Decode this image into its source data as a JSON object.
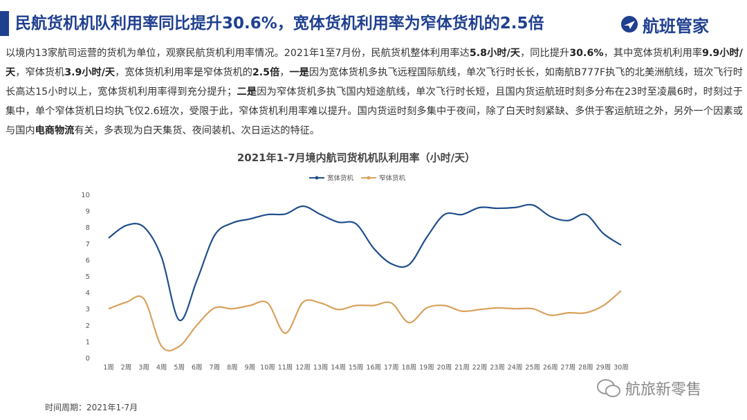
{
  "header": {
    "title": "民航货机机队利用率同比提升30.6%，宽体货机利用率为窄体货机的2.5倍",
    "logo": "航班管家"
  },
  "paragraph": [
    {
      "text": "以境内13家航司运营的货机为单位，观察民航货机利用率情况。2021年1至7月份，民航货机整体利用率达",
      "bold": false
    },
    {
      "text": "5.8小时/天",
      "bold": true
    },
    {
      "text": "，同比提升",
      "bold": false
    },
    {
      "text": "30.6%",
      "bold": true
    },
    {
      "text": "，其中宽体货机利用率",
      "bold": false
    },
    {
      "text": "9.9小时/天",
      "bold": true
    },
    {
      "text": "，窄体货机",
      "bold": false
    },
    {
      "text": "3.9小时/天",
      "bold": true
    },
    {
      "text": "，宽体货机利用率是窄体货机的",
      "bold": false
    },
    {
      "text": "2.5倍",
      "bold": true
    },
    {
      "text": "，",
      "bold": false
    },
    {
      "text": "一是",
      "bold": true
    },
    {
      "text": "因为宽体货机多执飞远程国际航线，单次飞行时长长，如南航B777F执飞的北美洲航线，班次飞行时长高达15小时以上，宽体货机利用率得到充分提升；",
      "bold": false
    },
    {
      "text": "二是",
      "bold": true
    },
    {
      "text": "因为窄体货机多执飞国内短途航线，单次飞行时长短，且国内货运航班时刻多分布在23时至凌晨6时，时刻过于集中，单个窄体货机日均执飞仅2.6班次，受限于此，窄体货机利用率难以提升。国内货运时刻多集中于夜间，除了白天时刻紧缺、多供于客运航班之外，另外一个因素或与国内",
      "bold": false
    },
    {
      "text": "电商物流",
      "bold": true
    },
    {
      "text": "有关，多表现为白天集货、夜间装机、次日运达的特征。",
      "bold": false
    }
  ],
  "chart_data": {
    "type": "line",
    "title": "2021年1-7月境内航司货机机队利用率（小时/天）",
    "categories": [
      "1周",
      "2周",
      "3周",
      "4周",
      "5周",
      "6周",
      "7周",
      "8周",
      "9周",
      "10周",
      "11周",
      "12周",
      "13周",
      "14周",
      "15周",
      "16周",
      "17周",
      "18周",
      "19周",
      "20周",
      "21周",
      "22周",
      "23周",
      "24周",
      "25周",
      "26周",
      "27周",
      "28周",
      "29周",
      "30周"
    ],
    "series": [
      {
        "name": "宽体货机",
        "color": "#1f4e8c",
        "values": [
          7.33,
          8.1,
          8.0,
          6.15,
          2.3,
          4.75,
          7.5,
          8.25,
          8.5,
          8.77,
          8.8,
          9.28,
          8.77,
          8.3,
          8.2,
          6.7,
          5.75,
          5.7,
          7.37,
          8.77,
          8.77,
          9.2,
          9.15,
          9.2,
          9.35,
          8.65,
          8.4,
          8.77,
          7.6,
          6.9
        ]
      },
      {
        "name": "窄体货机",
        "color": "#d9a05b",
        "values": [
          3.0,
          3.4,
          3.6,
          0.7,
          0.7,
          2.0,
          3.05,
          3.0,
          3.2,
          3.35,
          1.5,
          3.4,
          3.35,
          2.95,
          3.2,
          3.2,
          3.35,
          2.15,
          3.05,
          3.2,
          2.85,
          2.95,
          3.05,
          3.0,
          3.0,
          2.6,
          2.75,
          2.75,
          3.2,
          4.1
        ]
      }
    ],
    "ylim": [
      0,
      10
    ],
    "yticks": [
      0,
      1,
      2,
      3,
      4,
      5,
      6,
      7,
      8,
      9,
      10
    ],
    "grid": false,
    "smooth": true,
    "legend": "top"
  },
  "footer": "时间周期：2021年1-7月",
  "watermark": "航旅新零售"
}
